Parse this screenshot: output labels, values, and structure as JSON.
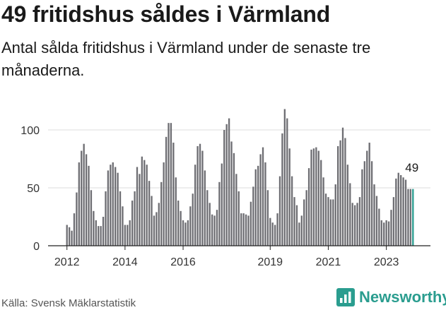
{
  "header": {
    "title": "49 fritidshus såldes i Värmland",
    "subtitle": "Antal sålda fritidshus i Värmland under de senaste tre månaderna."
  },
  "footer": {
    "source": "Källa: Svensk Mäklarstatistik",
    "brand": "Newsworthy"
  },
  "colors": {
    "bar": "#6e6e73",
    "highlight": "#2a9d8f",
    "grid": "#dddddd",
    "axis": "#222222"
  },
  "chart_data": {
    "type": "bar",
    "title": "49 fritidshus såldes i Värmland",
    "subtitle": "Antal sålda fritidshus i Värmland under de senaste tre månaderna.",
    "xlabel": "",
    "ylabel": "",
    "ylim": [
      0,
      120
    ],
    "yticks": [
      0,
      50,
      100
    ],
    "xticks": [
      "2012",
      "2014",
      "2016",
      "2019",
      "2021",
      "2023"
    ],
    "start": "2012-01",
    "end": "2023-12",
    "highlight_label": "49",
    "grid": true,
    "values": [
      18,
      16,
      13,
      28,
      46,
      72,
      82,
      88,
      79,
      69,
      48,
      30,
      22,
      17,
      17,
      25,
      47,
      65,
      70,
      72,
      68,
      63,
      47,
      34,
      18,
      18,
      22,
      39,
      47,
      68,
      62,
      77,
      74,
      70,
      56,
      43,
      26,
      29,
      37,
      55,
      72,
      94,
      106,
      106,
      89,
      59,
      39,
      30,
      22,
      20,
      22,
      34,
      45,
      70,
      86,
      88,
      82,
      65,
      48,
      37,
      27,
      26,
      31,
      55,
      71,
      100,
      105,
      110,
      90,
      80,
      62,
      47,
      28,
      28,
      27,
      26,
      38,
      51,
      66,
      69,
      79,
      85,
      72,
      48,
      24,
      20,
      18,
      28,
      60,
      97,
      118,
      110,
      84,
      60,
      42,
      35,
      20,
      26,
      40,
      48,
      67,
      83,
      84,
      85,
      82,
      74,
      59,
      45,
      42,
      40,
      40,
      53,
      86,
      91,
      102,
      93,
      70,
      54,
      37,
      35,
      37,
      42,
      66,
      73,
      82,
      89,
      73,
      53,
      43,
      32,
      22,
      20,
      22,
      21,
      31,
      42,
      58,
      63,
      61,
      59,
      57,
      49,
      49,
      49
    ]
  }
}
